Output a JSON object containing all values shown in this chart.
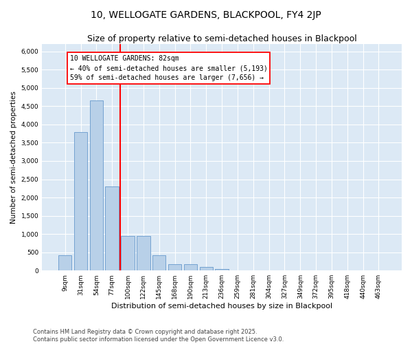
{
  "title": "10, WELLOGATE GARDENS, BLACKPOOL, FY4 2JP",
  "subtitle": "Size of property relative to semi-detached houses in Blackpool",
  "xlabel": "Distribution of semi-detached houses by size in Blackpool",
  "ylabel": "Number of semi-detached properties",
  "categories": [
    "9sqm",
    "31sqm",
    "54sqm",
    "77sqm",
    "100sqm",
    "122sqm",
    "145sqm",
    "168sqm",
    "190sqm",
    "213sqm",
    "236sqm",
    "259sqm",
    "281sqm",
    "304sqm",
    "327sqm",
    "349sqm",
    "372sqm",
    "395sqm",
    "418sqm",
    "440sqm",
    "463sqm"
  ],
  "values": [
    420,
    3800,
    4650,
    2300,
    950,
    950,
    420,
    175,
    175,
    100,
    50,
    0,
    0,
    0,
    0,
    0,
    0,
    0,
    0,
    0,
    0
  ],
  "bar_color": "#b8d0e8",
  "bar_edge_color": "#6699cc",
  "red_line_x": 3.5,
  "ylim": [
    0,
    6200
  ],
  "yticks": [
    0,
    500,
    1000,
    1500,
    2000,
    2500,
    3000,
    3500,
    4000,
    4500,
    5000,
    5500,
    6000
  ],
  "background_color": "#dce9f5",
  "grid_color": "#ffffff",
  "annotation_line1": "10 WELLOGATE GARDENS: 82sqm",
  "annotation_line2": "← 40% of semi-detached houses are smaller (5,193)",
  "annotation_line3": "59% of semi-detached houses are larger (7,656) →",
  "footer": "Contains HM Land Registry data © Crown copyright and database right 2025.\nContains public sector information licensed under the Open Government Licence v3.0.",
  "title_fontsize": 10,
  "subtitle_fontsize": 9,
  "xlabel_fontsize": 8,
  "ylabel_fontsize": 7.5,
  "tick_fontsize": 6.5,
  "annotation_fontsize": 7,
  "footer_fontsize": 6
}
